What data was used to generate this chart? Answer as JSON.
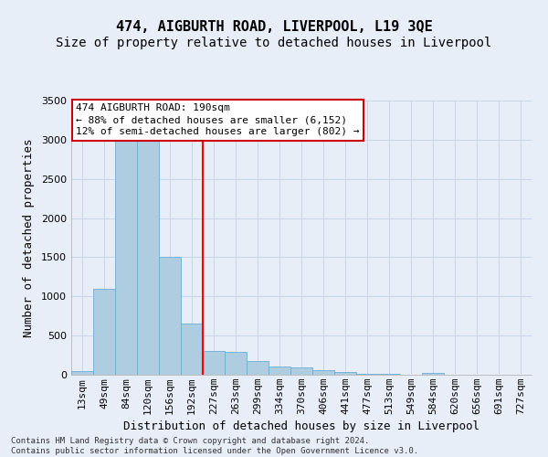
{
  "title": "474, AIGBURTH ROAD, LIVERPOOL, L19 3QE",
  "subtitle": "Size of property relative to detached houses in Liverpool",
  "xlabel": "Distribution of detached houses by size in Liverpool",
  "ylabel": "Number of detached properties",
  "footer_line1": "Contains HM Land Registry data © Crown copyright and database right 2024.",
  "footer_line2": "Contains public sector information licensed under the Open Government Licence v3.0.",
  "categories": [
    "13sqm",
    "49sqm",
    "84sqm",
    "120sqm",
    "156sqm",
    "192sqm",
    "227sqm",
    "263sqm",
    "299sqm",
    "334sqm",
    "370sqm",
    "406sqm",
    "441sqm",
    "477sqm",
    "513sqm",
    "549sqm",
    "584sqm",
    "620sqm",
    "656sqm",
    "691sqm",
    "727sqm"
  ],
  "values": [
    50,
    1100,
    3000,
    3050,
    1500,
    650,
    300,
    290,
    175,
    100,
    95,
    60,
    35,
    15,
    10,
    5,
    28,
    3,
    1,
    1,
    1
  ],
  "bar_color": "#aecde0",
  "bar_edge_color": "#6baed6",
  "grid_color": "#c8d4e8",
  "background_color": "#e8eef8",
  "red_line_x": 5.5,
  "annotation_text": "474 AIGBURTH ROAD: 190sqm\n← 88% of detached houses are smaller (6,152)\n12% of semi-detached houses are larger (802) →",
  "annotation_box_facecolor": "#ffffff",
  "annotation_box_edgecolor": "#cc0000",
  "ylim": [
    0,
    3500
  ],
  "yticks": [
    0,
    500,
    1000,
    1500,
    2000,
    2500,
    3000,
    3500
  ],
  "title_fontsize": 11,
  "subtitle_fontsize": 10,
  "ylabel_fontsize": 9,
  "xlabel_fontsize": 9,
  "tick_fontsize": 8,
  "annotation_fontsize": 8,
  "footer_fontsize": 6.5
}
